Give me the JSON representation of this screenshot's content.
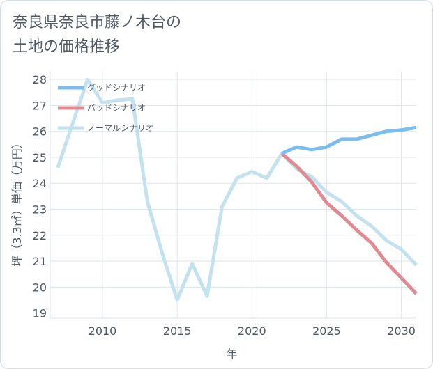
{
  "chart_data": {
    "type": "line",
    "title": "奈良県奈良市藤ノ木台の\n土地の価格推移",
    "xlabel": "年",
    "ylabel": "坪（3.3㎡）単価（万円）",
    "xlim": [
      2006.5,
      2031
    ],
    "ylim": [
      18.8,
      28.3
    ],
    "xticks": [
      2010,
      2015,
      2020,
      2025,
      2030
    ],
    "yticks": [
      19,
      20,
      21,
      22,
      23,
      24,
      25,
      26,
      27,
      28
    ],
    "grid": true,
    "legend_position": "top-left",
    "series": [
      {
        "name": "グッドシナリオ",
        "color": "#7bbdee",
        "x": [
          2022,
          2023,
          2024,
          2025,
          2026,
          2027,
          2028,
          2029,
          2030,
          2031
        ],
        "values": [
          25.15,
          25.4,
          25.3,
          25.4,
          25.7,
          25.7,
          25.85,
          26.0,
          26.05,
          26.15
        ]
      },
      {
        "name": "バッドシナリオ",
        "color": "#e08a92",
        "x": [
          2022,
          2023,
          2024,
          2025,
          2026,
          2027,
          2028,
          2029,
          2030,
          2031
        ],
        "values": [
          25.15,
          24.65,
          24.05,
          23.25,
          22.75,
          22.2,
          21.7,
          20.95,
          20.35,
          19.75
        ]
      },
      {
        "name": "ノーマルシナリオ",
        "color": "#c3e1ee",
        "x": [
          2007,
          2008,
          2009,
          2010,
          2011,
          2012,
          2013,
          2014,
          2015,
          2016,
          2017,
          2018,
          2019,
          2020,
          2021,
          2022,
          2023,
          2024,
          2025,
          2026,
          2027,
          2028,
          2029,
          2030,
          2031
        ],
        "values": [
          24.6,
          26.3,
          28.0,
          27.1,
          27.2,
          27.25,
          23.3,
          21.3,
          19.5,
          20.9,
          19.65,
          23.1,
          24.2,
          24.45,
          24.2,
          25.15,
          24.55,
          24.25,
          23.65,
          23.3,
          22.75,
          22.35,
          21.8,
          21.45,
          20.85
        ]
      }
    ]
  }
}
